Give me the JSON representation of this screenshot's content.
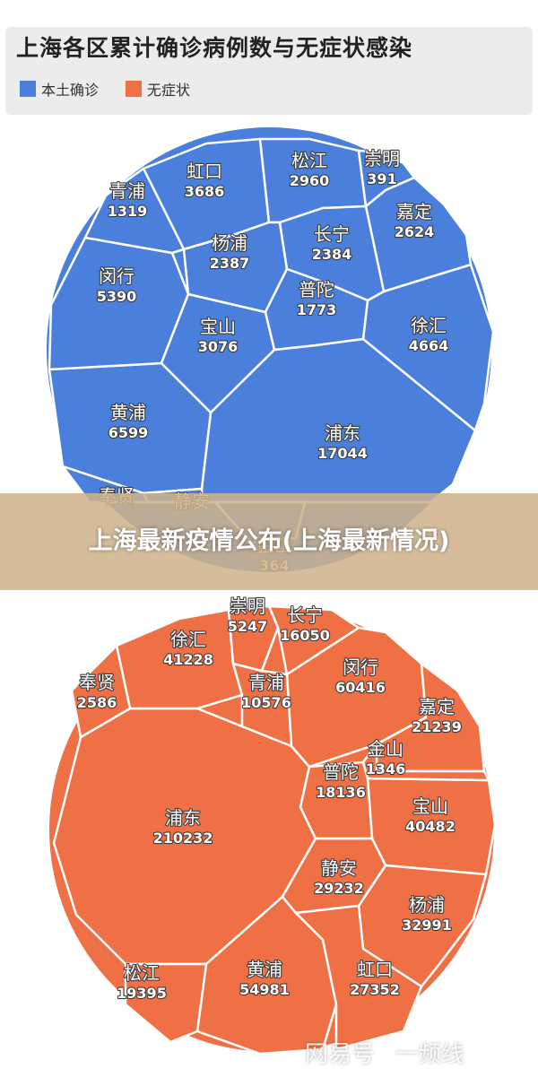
{
  "banner": {
    "text": "上海最新疫情公布(上海最新情况)"
  },
  "watermark": {
    "brand": "网易号",
    "account": "一频线"
  },
  "colors": {
    "confirmed": "#4a7fdc",
    "asymptomatic": "#f07046",
    "background": "#ffffff",
    "card": "#ececec"
  },
  "chart_data": {
    "type": "voronoi-treemap",
    "title": "上海各区累计确诊病例数与无症状感染",
    "legend": [
      {
        "label": "本土确诊",
        "color": "#4a7fdc"
      },
      {
        "label": "无症状",
        "color": "#f07046"
      }
    ],
    "series": [
      {
        "name": "本土确诊",
        "color": "#4a7fdc",
        "cells": [
          {
            "district": "浦东",
            "value": 17044
          },
          {
            "district": "黄浦",
            "value": 6599
          },
          {
            "district": "闵行",
            "value": 5390
          },
          {
            "district": "徐汇",
            "value": 4664
          },
          {
            "district": "虹口",
            "value": 3686
          },
          {
            "district": "宝山",
            "value": 3076
          },
          {
            "district": "松江",
            "value": 2960
          },
          {
            "district": "嘉定",
            "value": 2624
          },
          {
            "district": "杨浦",
            "value": 2387
          },
          {
            "district": "长宁",
            "value": 2384
          },
          {
            "district": "普陀",
            "value": 1773
          },
          {
            "district": "青浦",
            "value": 1319
          },
          {
            "district": "崇明",
            "value": 391
          },
          {
            "district": "金山",
            "value": 364
          },
          {
            "district": "奉贤",
            "value": null
          },
          {
            "district": "静安",
            "value": null
          }
        ]
      },
      {
        "name": "无症状",
        "color": "#f07046",
        "cells": [
          {
            "district": "浦东",
            "value": 210232
          },
          {
            "district": "闵行",
            "value": 60416
          },
          {
            "district": "黄浦",
            "value": 54981
          },
          {
            "district": "徐汇",
            "value": 41228
          },
          {
            "district": "宝山",
            "value": 40482
          },
          {
            "district": "杨浦",
            "value": 32991
          },
          {
            "district": "静安",
            "value": 29232
          },
          {
            "district": "虹口",
            "value": 27352
          },
          {
            "district": "嘉定",
            "value": 21239
          },
          {
            "district": "松江",
            "value": 19395
          },
          {
            "district": "普陀",
            "value": 18136
          },
          {
            "district": "长宁",
            "value": 16050
          },
          {
            "district": "青浦",
            "value": 10576
          },
          {
            "district": "崇明",
            "value": 5247
          },
          {
            "district": "奉贤",
            "value": 2586
          },
          {
            "district": "金山",
            "value": 1346
          }
        ]
      }
    ]
  }
}
